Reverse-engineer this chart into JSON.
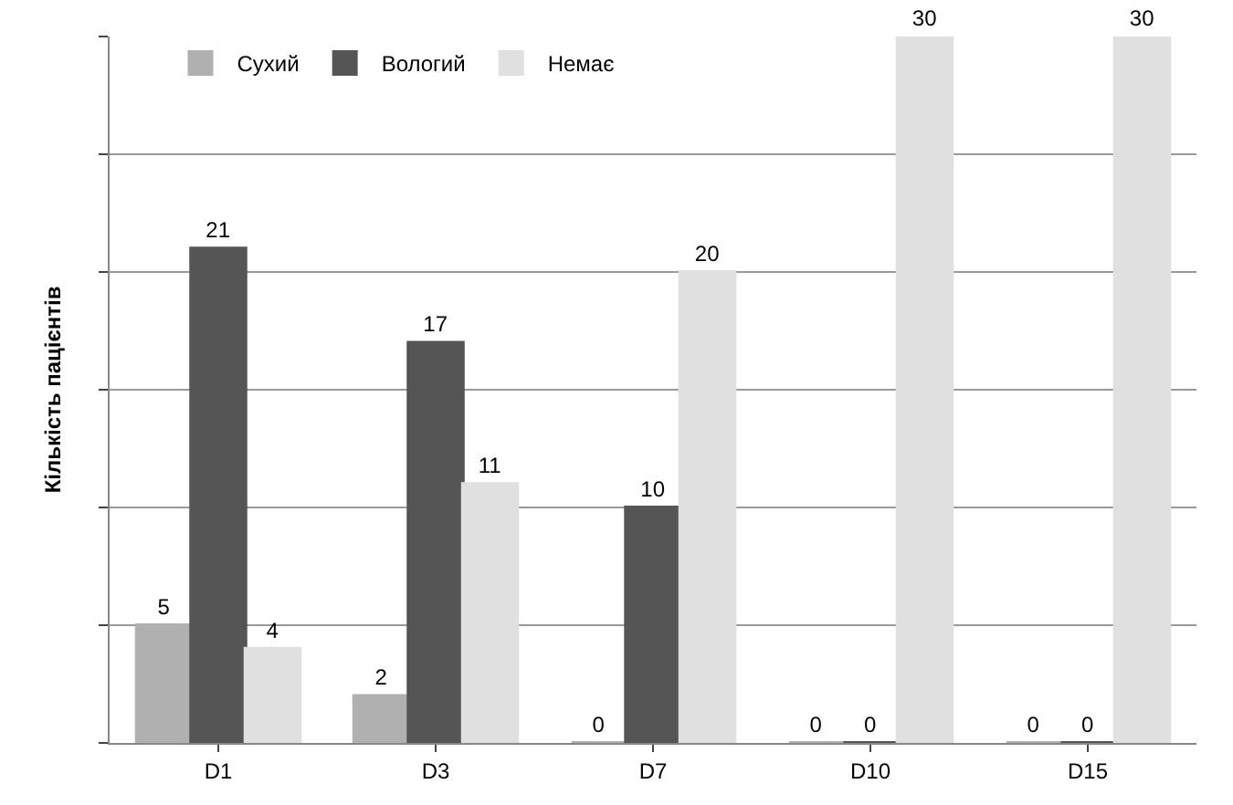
{
  "chart_data": {
    "type": "bar",
    "ylabel": "Кількість пацієнтів",
    "categories": [
      "D1",
      "D3",
      "D7",
      "D10",
      "D15"
    ],
    "series": [
      {
        "name": "Сухий",
        "color": "#b0b0b0",
        "values": [
          5,
          2,
          0,
          0,
          0
        ]
      },
      {
        "name": "Вологий",
        "color": "#555555",
        "values": [
          21,
          17,
          10,
          0,
          0
        ]
      },
      {
        "name": "Немає",
        "color": "#e0e0e0",
        "values": [
          4,
          11,
          20,
          30,
          30
        ]
      }
    ],
    "ylim": [
      0,
      30
    ],
    "yticks": [
      {
        "value": 0,
        "label": null
      },
      {
        "value": 5,
        "label": null
      },
      {
        "value": 10,
        "label": null
      },
      {
        "value": 15,
        "label": null
      },
      {
        "value": 20,
        "label": null
      },
      {
        "value": 25,
        "label": null
      },
      {
        "value": 30,
        "label": null
      }
    ],
    "grid": "y",
    "legend": "top left",
    "data_labels": true
  }
}
